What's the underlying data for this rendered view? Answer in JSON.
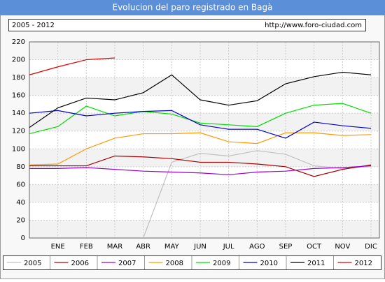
{
  "chart_data": {
    "type": "line",
    "title": "Evolucion del paro registrado en Bagà",
    "subtitle": "2005 - 2012",
    "source": "http://www.foro-ciudad.com",
    "categories": [
      null,
      "ENE",
      "FEB",
      "MAR",
      "ABR",
      "MAY",
      "JUN",
      "JUL",
      "AGO",
      "SEP",
      "OCT",
      "NOV",
      "DIC"
    ],
    "series": [
      {
        "name": "2005",
        "color": "#c0c0c0",
        "values": [
          null,
          null,
          null,
          null,
          0,
          85,
          95,
          92,
          98,
          94,
          81,
          78,
          80
        ]
      },
      {
        "name": "2006",
        "color": "#aa0000",
        "values": [
          81,
          81,
          81,
          92,
          91,
          89,
          85,
          85,
          83,
          80,
          69,
          77,
          82
        ]
      },
      {
        "name": "2007",
        "color": "#9900cc",
        "values": [
          78,
          78,
          79,
          77,
          75,
          74,
          73,
          71,
          74,
          75,
          78,
          79,
          81
        ]
      },
      {
        "name": "2008",
        "color": "#ff9900",
        "values": [
          82,
          83,
          100,
          112,
          117,
          117,
          118,
          108,
          106,
          118,
          118,
          115,
          116
        ]
      },
      {
        "name": "2009",
        "color": "#00dd00",
        "values": [
          117,
          125,
          148,
          137,
          142,
          139,
          129,
          127,
          125,
          140,
          149,
          151,
          140
        ]
      },
      {
        "name": "2010",
        "color": "#0000cc",
        "values": [
          140,
          143,
          137,
          140,
          142,
          143,
          127,
          122,
          122,
          112,
          130,
          126,
          123
        ]
      },
      {
        "name": "2011",
        "color": "#000000",
        "values": [
          124,
          146,
          157,
          155,
          163,
          183,
          155,
          149,
          154,
          173,
          181,
          186,
          183
        ]
      },
      {
        "name": "2012",
        "color": "#dd0000",
        "values": [
          183,
          192,
          200,
          202,
          null,
          null,
          null,
          null,
          null,
          null,
          null,
          null,
          null
        ]
      }
    ],
    "ylim": [
      0,
      220
    ],
    "yticks": [
      0,
      20,
      40,
      60,
      80,
      100,
      120,
      140,
      160,
      180,
      200,
      220
    ],
    "grid": true,
    "legend": "bottom"
  }
}
